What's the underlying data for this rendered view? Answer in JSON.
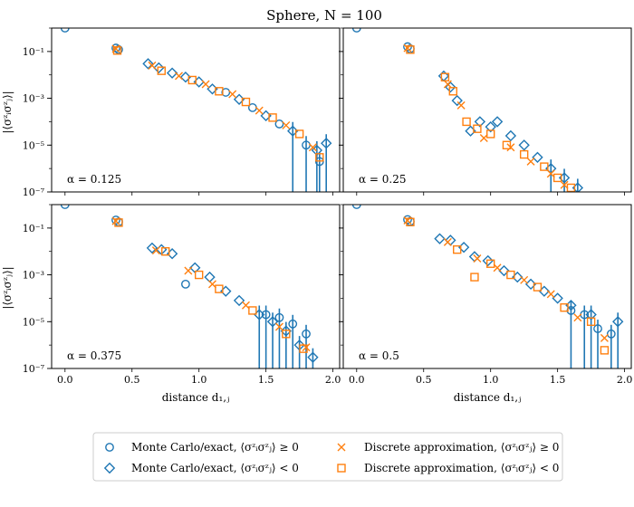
{
  "figure": {
    "title": "Sphere, N = 100",
    "ylabel": "|⟨σᶻᵢσᶻⱼ⟩|",
    "xlabel": "distance d₁,ⱼ"
  },
  "legend": {
    "entries": [
      {
        "label": "Monte Carlo/exact, ⟨σᶻᵢσᶻⱼ⟩ ≥ 0",
        "marker": "circle",
        "color": "#1f77b4"
      },
      {
        "label": "Monte Carlo/exact, ⟨σᶻᵢσᶻⱼ⟩ < 0",
        "marker": "diamond",
        "color": "#1f77b4"
      },
      {
        "label": "Discrete approximation, ⟨σᶻᵢσᶻⱼ⟩ ≥ 0",
        "marker": "x",
        "color": "#ff7f0e"
      },
      {
        "label": "Discrete approximation, ⟨σᶻᵢσᶻⱼ⟩ < 0",
        "marker": "square",
        "color": "#ff7f0e"
      }
    ]
  },
  "axes": {
    "x_ticks": [
      "0.0",
      "0.5",
      "1.0",
      "1.5",
      "2.0"
    ],
    "y_ticks": [
      "10⁻¹",
      "10⁻³",
      "10⁻⁵",
      "10⁻⁷"
    ]
  },
  "chart_data": [
    {
      "type": "scatter",
      "yscale": "log",
      "xlim": [
        -0.1,
        2.05
      ],
      "ylim": [
        1e-07,
        1
      ],
      "annotation": "α = 0.125",
      "series": [
        {
          "name": "Monte Carlo/exact, ⟨σᶻᵢσᶻⱼ⟩ ≥ 0",
          "marker": "circle",
          "x": [
            0.0,
            0.38,
            0.4,
            1.2,
            1.4,
            1.6,
            1.8,
            1.9
          ],
          "y": [
            1.0,
            0.14,
            0.12,
            0.0018,
            0.0004,
            8e-05,
            1e-05,
            2e-06
          ]
        },
        {
          "name": "Monte Carlo/exact, ⟨σᶻᵢσᶻⱼ⟩ < 0",
          "marker": "diamond",
          "x": [
            0.62,
            0.7,
            0.8,
            0.9,
            1.0,
            1.1,
            1.3,
            1.5,
            1.7,
            1.88,
            1.95
          ],
          "y": [
            0.03,
            0.02,
            0.012,
            0.008,
            0.005,
            0.0025,
            0.0009,
            0.00018,
            4e-05,
            6e-06,
            1.2e-05
          ]
        },
        {
          "name": "Discrete approximation, ⟨σᶻᵢσᶻⱼ⟩ ≥ 0",
          "marker": "x",
          "x": [
            0.38,
            0.65,
            0.85,
            1.05,
            1.25,
            1.45,
            1.65,
            1.85
          ],
          "y": [
            0.13,
            0.025,
            0.009,
            0.004,
            0.0015,
            0.0003,
            7e-05,
            8e-06
          ]
        },
        {
          "name": "Discrete approximation, ⟨σᶻᵢσᶻⱼ⟩ < 0",
          "marker": "square",
          "x": [
            0.39,
            0.72,
            0.95,
            1.15,
            1.35,
            1.55,
            1.75,
            1.9
          ],
          "y": [
            0.11,
            0.015,
            0.006,
            0.002,
            0.0007,
            0.00015,
            3e-05,
            3e-06
          ]
        }
      ]
    },
    {
      "type": "scatter",
      "yscale": "log",
      "xlim": [
        -0.1,
        2.05
      ],
      "ylim": [
        1e-07,
        1
      ],
      "annotation": "α = 0.25",
      "series": [
        {
          "name": "Monte Carlo/exact, ⟨σᶻᵢσᶻⱼ⟩ ≥ 0",
          "marker": "circle",
          "x": [
            0.0,
            0.38,
            0.4
          ],
          "y": [
            1.0,
            0.16,
            0.13
          ]
        },
        {
          "name": "Monte Carlo/exact, ⟨σᶻᵢσᶻⱼ⟩ < 0",
          "marker": "diamond",
          "x": [
            0.65,
            0.7,
            0.75,
            0.85,
            0.92,
            1.0,
            1.05,
            1.15,
            1.25,
            1.35,
            1.45,
            1.55,
            1.65
          ],
          "y": [
            0.009,
            0.003,
            0.0008,
            4e-05,
            0.0001,
            6e-05,
            0.0001,
            2.5e-05,
            1e-05,
            3e-06,
            1e-06,
            4e-07,
            1.5e-07
          ]
        },
        {
          "name": "Discrete approximation, ⟨σᶻᵢσᶻⱼ⟩ ≥ 0",
          "marker": "x",
          "x": [
            0.38,
            0.68,
            0.78,
            0.95,
            1.15,
            1.3,
            1.45,
            1.55
          ],
          "y": [
            0.14,
            0.004,
            0.0005,
            2e-05,
            8e-06,
            2e-06,
            6e-07,
            2e-07
          ]
        },
        {
          "name": "Discrete approximation, ⟨σᶻᵢσᶻⱼ⟩ < 0",
          "marker": "square",
          "x": [
            0.4,
            0.66,
            0.72,
            0.82,
            0.9,
            1.0,
            1.12,
            1.25,
            1.4,
            1.5,
            1.6
          ],
          "y": [
            0.12,
            0.008,
            0.002,
            0.0001,
            5e-05,
            3e-05,
            1e-05,
            4e-06,
            1.2e-06,
            4e-07,
            1.5e-07
          ]
        }
      ]
    },
    {
      "type": "scatter",
      "yscale": "log",
      "xlim": [
        -0.1,
        2.05
      ],
      "ylim": [
        1e-07,
        1
      ],
      "annotation": "α = 0.375",
      "series": [
        {
          "name": "Monte Carlo/exact, ⟨σᶻᵢσᶻⱼ⟩ ≥ 0",
          "marker": "circle",
          "x": [
            0.0,
            0.38,
            0.4,
            0.9,
            1.5,
            1.6,
            1.7,
            1.8
          ],
          "y": [
            1.0,
            0.22,
            0.18,
            0.0004,
            2e-05,
            1.5e-05,
            8e-06,
            3e-06
          ]
        },
        {
          "name": "Monte Carlo/exact, ⟨σᶻᵢσᶻⱼ⟩ < 0",
          "marker": "diamond",
          "x": [
            0.65,
            0.72,
            0.8,
            0.97,
            1.08,
            1.2,
            1.3,
            1.45,
            1.55,
            1.65,
            1.75,
            1.85
          ],
          "y": [
            0.014,
            0.012,
            0.008,
            0.002,
            0.0008,
            0.0002,
            8e-05,
            2e-05,
            1e-05,
            4e-06,
            1e-06,
            3e-07
          ]
        },
        {
          "name": "Discrete approximation, ⟨σᶻᵢσᶻⱼ⟩ ≥ 0",
          "marker": "x",
          "x": [
            0.38,
            0.68,
            0.92,
            1.1,
            1.35,
            1.6,
            1.8
          ],
          "y": [
            0.2,
            0.011,
            0.0015,
            0.0004,
            5e-05,
            6e-06,
            8e-07
          ]
        },
        {
          "name": "Discrete approximation, ⟨σᶻᵢσᶻⱼ⟩ < 0",
          "marker": "square",
          "x": [
            0.4,
            0.75,
            1.0,
            1.15,
            1.4,
            1.65,
            1.78
          ],
          "y": [
            0.17,
            0.01,
            0.001,
            0.00025,
            3e-05,
            3e-06,
            7e-07
          ]
        }
      ]
    },
    {
      "type": "scatter",
      "yscale": "log",
      "xlim": [
        -0.1,
        2.05
      ],
      "ylim": [
        1e-07,
        1
      ],
      "annotation": "α = 0.5",
      "series": [
        {
          "name": "Monte Carlo/exact, ⟨σᶻᵢσᶻⱼ⟩ ≥ 0",
          "marker": "circle",
          "x": [
            0.0,
            0.38,
            0.4,
            1.6,
            1.7,
            1.8,
            1.9
          ],
          "y": [
            1.0,
            0.23,
            0.19,
            3e-05,
            2e-05,
            5e-06,
            3e-06
          ]
        },
        {
          "name": "Monte Carlo/exact, ⟨σᶻᵢσᶻⱼ⟩ < 0",
          "marker": "diamond",
          "x": [
            0.62,
            0.7,
            0.8,
            0.88,
            0.98,
            1.1,
            1.2,
            1.3,
            1.4,
            1.5,
            1.6,
            1.75,
            1.95
          ],
          "y": [
            0.035,
            0.03,
            0.015,
            0.006,
            0.004,
            0.0015,
            0.0008,
            0.0004,
            0.0002,
            0.0001,
            5e-05,
            2e-05,
            1e-05
          ]
        },
        {
          "name": "Discrete approximation, ⟨σᶻᵢσᶻⱼ⟩ ≥ 0",
          "marker": "x",
          "x": [
            0.38,
            0.68,
            0.9,
            1.05,
            1.25,
            1.45,
            1.65,
            1.85
          ],
          "y": [
            0.21,
            0.025,
            0.005,
            0.002,
            0.0006,
            0.00015,
            1.5e-05,
            2e-06
          ]
        },
        {
          "name": "Discrete approximation, ⟨σᶻᵢσᶻⱼ⟩ < 0",
          "marker": "square",
          "x": [
            0.4,
            0.75,
            0.88,
            1.0,
            1.15,
            1.35,
            1.55,
            1.75,
            1.85
          ],
          "y": [
            0.18,
            0.012,
            0.0008,
            0.003,
            0.001,
            0.0003,
            4e-05,
            1e-05,
            6e-07
          ]
        }
      ]
    }
  ]
}
